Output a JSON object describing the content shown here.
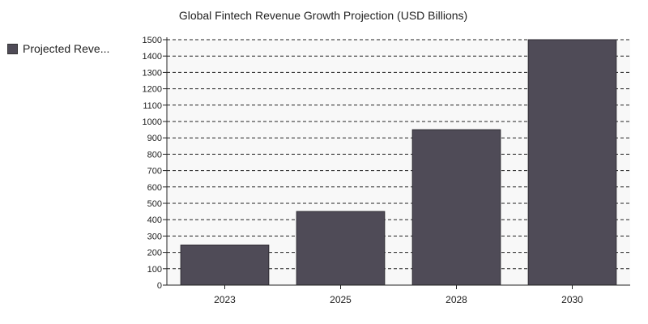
{
  "chart_data": {
    "type": "bar",
    "title": "Global Fintech Revenue Growth Projection (USD Billions)",
    "xlabel": "",
    "ylabel": "",
    "categories": [
      "2023",
      "2025",
      "2028",
      "2030"
    ],
    "series": [
      {
        "name": "Projected Reve...",
        "values": [
          245,
          450,
          950,
          1500
        ]
      }
    ],
    "ylim": [
      0,
      1500
    ],
    "yticks": [
      0,
      100,
      200,
      300,
      400,
      500,
      600,
      700,
      800,
      900,
      1000,
      1100,
      1200,
      1300,
      1400,
      1500
    ],
    "grid": true,
    "legend_position": "left",
    "colors": {
      "bar": "#4f4b57",
      "bar_border": "#2e2b33",
      "plot_bg": "#f8f8f8",
      "grid": "#222222"
    }
  }
}
